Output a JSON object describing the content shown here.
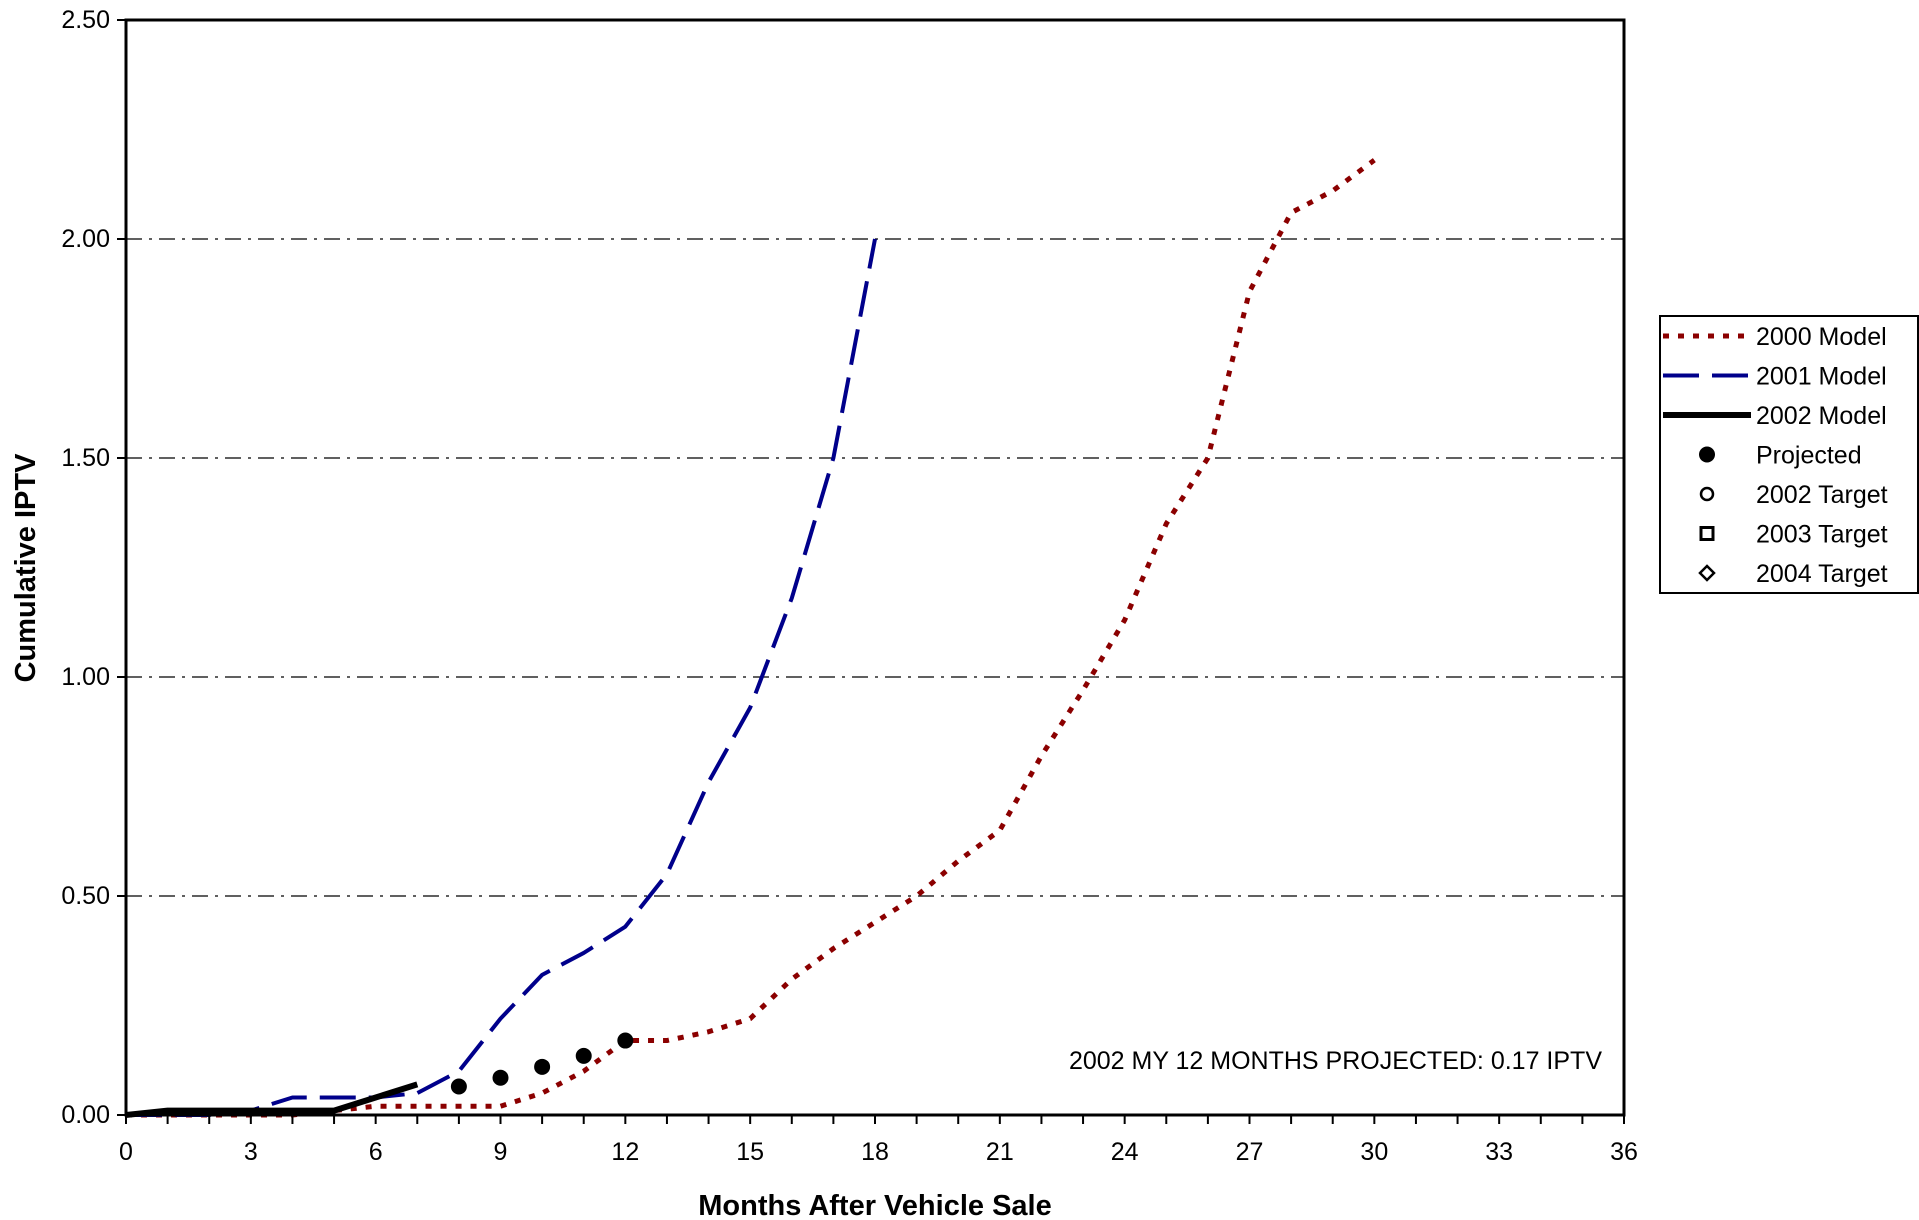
{
  "chart_data": {
    "type": "line",
    "title": "",
    "xlabel": "Months After Vehicle Sale",
    "ylabel": "Cumulative IPTV",
    "xlim": [
      0,
      36
    ],
    "ylim": [
      0,
      2.5
    ],
    "x_ticks": [
      "0",
      "3",
      "6",
      "9",
      "12",
      "15",
      "18",
      "21",
      "24",
      "27",
      "30",
      "33",
      "36"
    ],
    "y_ticks": [
      "0.00",
      "0.50",
      "1.00",
      "1.50",
      "2.00",
      "2.50"
    ],
    "grid": "horizontal dash-dot",
    "legend_position": "right",
    "annotation": "2002 MY 12 MONTHS PROJECTED: 0.17 IPTV",
    "series": [
      {
        "name": "2000 Model",
        "style": "dotted",
        "color": "#8B0000",
        "x": [
          0,
          1,
          2,
          3,
          4,
          5,
          6,
          7,
          8,
          9,
          10,
          11,
          12,
          13,
          14,
          15,
          16,
          17,
          18,
          19,
          20,
          21,
          22,
          23,
          24,
          25,
          26,
          27,
          28,
          29,
          30
        ],
        "y": [
          0.0,
          0.0,
          0.0,
          0.0,
          0.0,
          0.01,
          0.02,
          0.02,
          0.02,
          0.02,
          0.05,
          0.1,
          0.17,
          0.17,
          0.19,
          0.22,
          0.31,
          0.38,
          0.44,
          0.5,
          0.58,
          0.65,
          0.82,
          0.97,
          1.13,
          1.35,
          1.5,
          1.88,
          2.06,
          2.11,
          2.18
        ]
      },
      {
        "name": "2001 Model",
        "style": "dashed",
        "color": "#00008B",
        "x": [
          0,
          1,
          2,
          3,
          4,
          5,
          6,
          7,
          8,
          9,
          10,
          11,
          12,
          13,
          14,
          15,
          16,
          17,
          18
        ],
        "y": [
          0.0,
          0.0,
          0.0,
          0.01,
          0.04,
          0.04,
          0.04,
          0.05,
          0.1,
          0.22,
          0.32,
          0.37,
          0.43,
          0.55,
          0.76,
          0.93,
          1.18,
          1.5,
          2.0
        ]
      },
      {
        "name": "2002 Model",
        "style": "solid",
        "color": "#000000",
        "x": [
          0,
          1,
          2,
          3,
          4,
          5,
          6,
          7
        ],
        "y": [
          0.0,
          0.01,
          0.01,
          0.01,
          0.01,
          0.01,
          0.04,
          0.07
        ]
      },
      {
        "name": "Projected",
        "style": "marker-filled-circle",
        "color": "#000000",
        "x": [
          8,
          9,
          10,
          11,
          12
        ],
        "y": [
          0.065,
          0.085,
          0.11,
          0.135,
          0.17
        ]
      },
      {
        "name": "2002 Target",
        "style": "marker-open-circle",
        "color": "#000000",
        "x": [],
        "y": []
      },
      {
        "name": "2003 Target",
        "style": "marker-open-square",
        "color": "#000000",
        "x": [],
        "y": []
      },
      {
        "name": "2004 Target",
        "style": "marker-open-diamond",
        "color": "#000000",
        "x": [],
        "y": []
      }
    ]
  }
}
